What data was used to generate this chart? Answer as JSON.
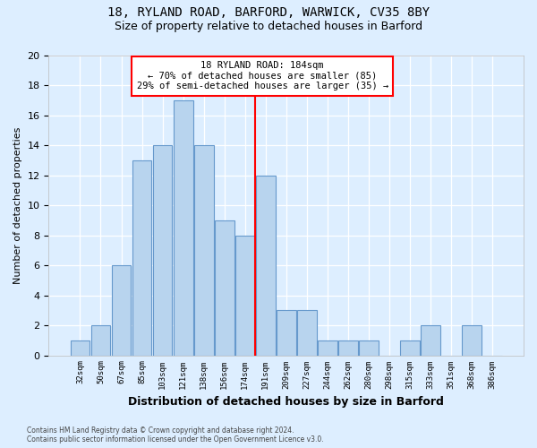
{
  "title1": "18, RYLAND ROAD, BARFORD, WARWICK, CV35 8BY",
  "title2": "Size of property relative to detached houses in Barford",
  "xlabel": "Distribution of detached houses by size in Barford",
  "ylabel": "Number of detached properties",
  "footnote1": "Contains HM Land Registry data © Crown copyright and database right 2024.",
  "footnote2": "Contains public sector information licensed under the Open Government Licence v3.0.",
  "annotation_line1": "18 RYLAND ROAD: 184sqm",
  "annotation_line2": "← 70% of detached houses are smaller (85)",
  "annotation_line3": "29% of semi-detached houses are larger (35) →",
  "bar_labels": [
    "32sqm",
    "50sqm",
    "67sqm",
    "85sqm",
    "103sqm",
    "121sqm",
    "138sqm",
    "156sqm",
    "174sqm",
    "191sqm",
    "209sqm",
    "227sqm",
    "244sqm",
    "262sqm",
    "280sqm",
    "298sqm",
    "315sqm",
    "333sqm",
    "351sqm",
    "368sqm",
    "386sqm"
  ],
  "bar_values": [
    1,
    2,
    6,
    13,
    14,
    17,
    14,
    9,
    8,
    12,
    3,
    3,
    1,
    1,
    1,
    0,
    1,
    2,
    0,
    2,
    0
  ],
  "bar_color": "#b8d4ee",
  "bar_edge_color": "#6699cc",
  "marker_x_label": "174sqm",
  "marker_color": "red",
  "ylim": [
    0,
    20
  ],
  "yticks": [
    0,
    2,
    4,
    6,
    8,
    10,
    12,
    14,
    16,
    18,
    20
  ],
  "bg_color": "#ddeeff",
  "plot_bg_color": "#ddeeff"
}
